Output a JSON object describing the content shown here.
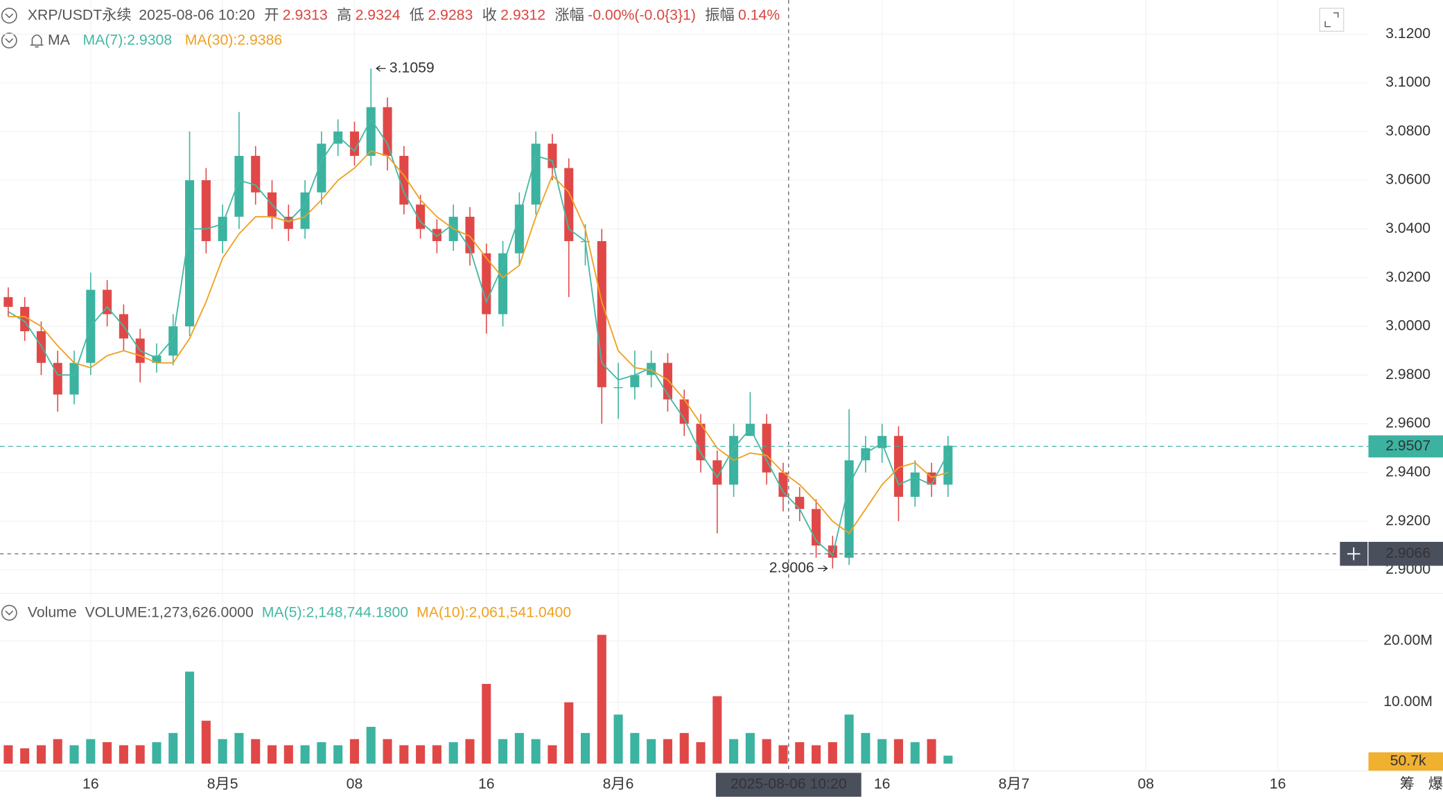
{
  "chart_data": {
    "type": "candlestick",
    "info": {
      "symbol": "XRP/USDT永续",
      "time": "2025-08-06 10:20",
      "fields": [
        {
          "label": "开",
          "value": 2.9313
        },
        {
          "label": "高",
          "value": 2.9324
        },
        {
          "label": "低",
          "value": 2.9283
        },
        {
          "label": "收",
          "value": 2.9312
        },
        {
          "label": "涨幅",
          "value": "-0.00%(-0.0{3}1)"
        },
        {
          "label": "振幅",
          "value": "0.14%"
        }
      ]
    },
    "ma_legend": [
      {
        "text": "MA",
        "color": "#555555"
      },
      {
        "text": "MA(7):2.9308",
        "color": "#45b8a4"
      },
      {
        "text": "MA(30):2.9386",
        "color": "#f0a020"
      }
    ],
    "volume_legend": [
      {
        "text": "Volume",
        "color": "#555555"
      },
      {
        "text": "VOLUME:1,273,626.0000",
        "color": "#555555"
      },
      {
        "text": "MA(5):2,148,744.1800",
        "color": "#45b8a4"
      },
      {
        "text": "MA(10):2,061,541.0400",
        "color": "#f0a020"
      }
    ],
    "up_color": "#3bb3a0",
    "down_color": "#e04848",
    "xlim": [
      -0.5,
      82.5
    ],
    "xticks": [
      {
        "value": 5,
        "label": "16"
      },
      {
        "value": 13,
        "label": "8月5"
      },
      {
        "value": 21,
        "label": "08"
      },
      {
        "value": 29,
        "label": "16"
      },
      {
        "value": 37,
        "label": "8月6"
      },
      {
        "value": 53,
        "label": "16"
      },
      {
        "value": 61,
        "label": "8月7"
      },
      {
        "value": 69,
        "label": "08"
      },
      {
        "value": 77,
        "label": "16"
      }
    ],
    "ylim": [
      2.896,
      3.134
    ],
    "yticks": [
      {
        "value": 3.12,
        "label": "3.1200"
      },
      {
        "value": 3.1,
        "label": "3.1000"
      },
      {
        "value": 3.08,
        "label": "3.0800"
      },
      {
        "value": 3.06,
        "label": "3.0600"
      },
      {
        "value": 3.04,
        "label": "3.0400"
      },
      {
        "value": 3.02,
        "label": "3.0200"
      },
      {
        "value": 3.0,
        "label": "3.0000"
      },
      {
        "value": 2.98,
        "label": "2.9800"
      },
      {
        "value": 2.96,
        "label": "2.9600"
      },
      {
        "value": 2.94,
        "label": "2.9400"
      },
      {
        "value": 2.92,
        "label": "2.9200"
      },
      {
        "value": 2.9,
        "label": "2.9000"
      }
    ],
    "open": [
      3.012,
      3.008,
      2.998,
      2.985,
      2.972,
      2.985,
      3.015,
      3.005,
      2.995,
      2.985,
      2.988,
      3.0,
      3.06,
      3.035,
      3.045,
      3.07,
      3.055,
      3.045,
      3.04,
      3.055,
      3.075,
      3.08,
      3.07,
      3.09,
      3.07,
      3.05,
      3.04,
      3.035,
      3.045,
      3.03,
      3.005,
      3.03,
      3.05,
      3.075,
      3.065,
      3.035,
      3.035,
      2.975,
      2.975,
      2.98,
      2.985,
      2.97,
      2.96,
      2.945,
      2.935,
      2.955,
      2.96,
      2.94,
      2.93,
      2.925,
      2.91,
      2.905,
      2.945,
      2.95,
      2.955,
      2.93,
      2.94,
      2.935
    ],
    "high": [
      3.016,
      3.012,
      3.002,
      2.99,
      2.99,
      3.022,
      3.019,
      3.009,
      2.999,
      2.993,
      3.005,
      3.08,
      3.065,
      3.05,
      3.088,
      3.074,
      3.06,
      3.05,
      3.06,
      3.08,
      3.085,
      3.084,
      3.1059,
      3.094,
      3.074,
      3.054,
      3.044,
      3.05,
      3.049,
      3.034,
      3.035,
      3.055,
      3.08,
      3.079,
      3.069,
      3.042,
      3.04,
      2.985,
      2.99,
      2.99,
      2.989,
      2.974,
      2.964,
      2.949,
      2.96,
      2.973,
      2.964,
      2.944,
      2.934,
      2.929,
      2.914,
      2.966,
      2.955,
      2.96,
      2.959,
      2.945,
      2.944,
      2.955
    ],
    "low": [
      3.004,
      2.994,
      2.98,
      2.965,
      2.968,
      2.98,
      3.0,
      2.99,
      2.977,
      2.981,
      2.984,
      2.996,
      3.03,
      3.03,
      3.04,
      3.05,
      3.04,
      3.035,
      3.036,
      3.05,
      3.07,
      3.066,
      3.066,
      3.064,
      3.046,
      3.036,
      3.03,
      3.031,
      3.025,
      2.997,
      3.0,
      3.025,
      3.046,
      3.06,
      3.012,
      3.025,
      2.96,
      2.962,
      2.97,
      2.975,
      2.965,
      2.955,
      2.94,
      2.915,
      2.93,
      2.955,
      2.935,
      2.924,
      2.92,
      2.905,
      2.9006,
      2.902,
      2.94,
      2.944,
      2.92,
      2.926,
      2.93,
      2.93
    ],
    "close": [
      3.008,
      2.998,
      2.985,
      2.972,
      2.985,
      3.015,
      3.005,
      2.995,
      2.985,
      2.988,
      3.0,
      3.06,
      3.035,
      3.045,
      3.07,
      3.055,
      3.045,
      3.04,
      3.055,
      3.075,
      3.08,
      3.07,
      3.09,
      3.07,
      3.05,
      3.04,
      3.035,
      3.045,
      3.03,
      3.005,
      3.03,
      3.05,
      3.075,
      3.065,
      3.035,
      3.035,
      2.975,
      2.975,
      2.98,
      2.985,
      2.97,
      2.96,
      2.945,
      2.935,
      2.955,
      2.96,
      2.94,
      2.93,
      2.925,
      2.91,
      2.905,
      2.945,
      2.95,
      2.955,
      2.93,
      2.94,
      2.935,
      2.951
    ],
    "ma7": {
      "color": "#45b8a4",
      "values": [
        3.006,
        3.002,
        2.992,
        2.98,
        2.98,
        3.0,
        3.008,
        3.0,
        2.99,
        2.987,
        2.995,
        3.04,
        3.04,
        3.042,
        3.06,
        3.058,
        3.05,
        3.043,
        3.05,
        3.068,
        3.078,
        3.072,
        3.085,
        3.075,
        3.055,
        3.043,
        3.037,
        3.042,
        3.032,
        3.01,
        3.025,
        3.045,
        3.07,
        3.068,
        3.04,
        3.035,
        2.985,
        2.978,
        2.98,
        2.983,
        2.972,
        2.962,
        2.948,
        2.938,
        2.95,
        2.958,
        2.945,
        2.932,
        2.925,
        2.912,
        2.906,
        2.935,
        2.948,
        2.952,
        2.935,
        2.938,
        2.935,
        2.948
      ]
    },
    "ma30": {
      "color": "#f0a020",
      "values": [
        3.004,
        3.004,
        3.0,
        2.992,
        2.985,
        2.983,
        2.988,
        2.99,
        2.988,
        2.985,
        2.985,
        2.995,
        3.01,
        3.028,
        3.038,
        3.045,
        3.045,
        3.043,
        3.045,
        3.052,
        3.06,
        3.065,
        3.072,
        3.07,
        3.062,
        3.052,
        3.045,
        3.04,
        3.037,
        3.028,
        3.02,
        3.025,
        3.045,
        3.062,
        3.055,
        3.04,
        3.01,
        2.99,
        2.983,
        2.982,
        2.978,
        2.97,
        2.96,
        2.95,
        2.945,
        2.948,
        2.947,
        2.94,
        2.935,
        2.928,
        2.92,
        2.915,
        2.925,
        2.935,
        2.942,
        2.944,
        2.938,
        2.94
      ]
    },
    "max_price": 3.1059,
    "min_price": 2.9006,
    "last_price": 2.9507,
    "crosshair": {
      "x": 47.33,
      "x_label": "2025-08-06 10:20",
      "y": 2.9066
    },
    "volume": {
      "ylim": [
        0,
        27
      ],
      "yticks": [
        {
          "value": 20,
          "label": "20.00M"
        },
        {
          "value": 10,
          "label": "10.00M"
        }
      ],
      "values": [
        3,
        2.5,
        3,
        4,
        3,
        4,
        3.5,
        3,
        3,
        3.5,
        5,
        15,
        7,
        4,
        5,
        4,
        3,
        3,
        3,
        3.5,
        3,
        4,
        6,
        4,
        3,
        3,
        3,
        3.5,
        4,
        13,
        4,
        5,
        4,
        3,
        10,
        5,
        21,
        8,
        5,
        4,
        4,
        5,
        3.5,
        11,
        4,
        5,
        4,
        3,
        3.5,
        3,
        3.5,
        8,
        5,
        4,
        4,
        3.5,
        4,
        1.3
      ],
      "last": {
        "value": 0.0507,
        "label": "50.7k"
      }
    },
    "corner_labels": [
      "筹",
      "爆"
    ]
  }
}
